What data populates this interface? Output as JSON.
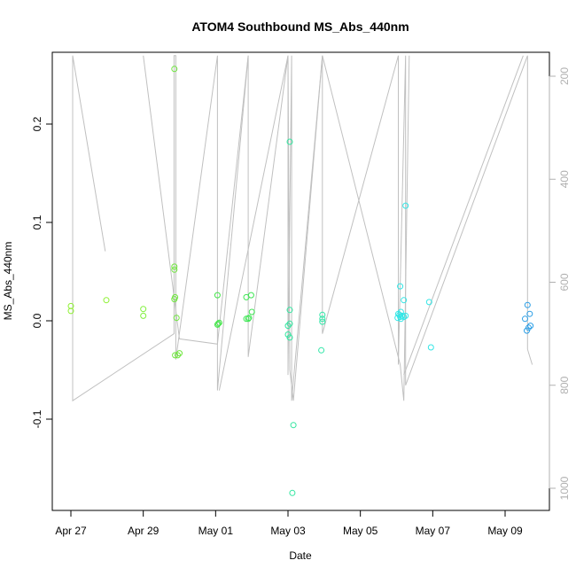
{
  "chart_data": {
    "type": "scatter",
    "title": "ATOM4 Southbound MS_Abs_440nm",
    "xlabel": "Date",
    "ylabel": "MS_Abs_440nm",
    "x_ticks": [
      "Apr 27",
      "Apr 29",
      "May 01",
      "May 03",
      "May 05",
      "May 07",
      "May 09"
    ],
    "x_tick_values": [
      0,
      2,
      4,
      6,
      8,
      10,
      12
    ],
    "y_ticks": [
      "-0.1",
      "0.0",
      "0.1",
      "0.2"
    ],
    "y_tick_values": [
      -0.1,
      0.0,
      0.1,
      0.2
    ],
    "ylim": [
      -0.19,
      0.27
    ],
    "y2_ticks": [
      "200",
      "400",
      "600",
      "800",
      "1000"
    ],
    "y2_tick_values": [
      200,
      400,
      600,
      800,
      1000
    ],
    "y2lim": [
      1030,
      160
    ],
    "grid": false,
    "points": [
      {
        "x": 0.0,
        "y": 0.015,
        "color": "#8ef032"
      },
      {
        "x": 0.0,
        "y": 0.01,
        "color": "#8ef032"
      },
      {
        "x": 0.98,
        "y": 0.021,
        "color": "#8ef032"
      },
      {
        "x": 2.0,
        "y": 0.012,
        "color": "#7ff03a"
      },
      {
        "x": 2.0,
        "y": 0.005,
        "color": "#7ff03a"
      },
      {
        "x": 2.86,
        "y": 0.256,
        "color": "#6ee63c"
      },
      {
        "x": 2.86,
        "y": 0.055,
        "color": "#6ee63c"
      },
      {
        "x": 2.86,
        "y": 0.052,
        "color": "#6ee63c"
      },
      {
        "x": 2.88,
        "y": 0.024,
        "color": "#6ee63c"
      },
      {
        "x": 2.86,
        "y": 0.022,
        "color": "#6ee63c"
      },
      {
        "x": 2.92,
        "y": 0.003,
        "color": "#6ee63c"
      },
      {
        "x": 2.88,
        "y": -0.035,
        "color": "#6ee63c"
      },
      {
        "x": 2.95,
        "y": -0.035,
        "color": "#6ee63c"
      },
      {
        "x": 3.0,
        "y": -0.033,
        "color": "#6ee63c"
      },
      {
        "x": 4.05,
        "y": 0.026,
        "color": "#44e64a"
      },
      {
        "x": 4.05,
        "y": -0.004,
        "color": "#44e64a"
      },
      {
        "x": 4.1,
        "y": -0.002,
        "color": "#44e64a"
      },
      {
        "x": 4.07,
        "y": -0.003,
        "color": "#44e64a"
      },
      {
        "x": 4.85,
        "y": 0.024,
        "color": "#3ee654"
      },
      {
        "x": 4.98,
        "y": 0.026,
        "color": "#3ee654"
      },
      {
        "x": 4.85,
        "y": 0.002,
        "color": "#3ee654"
      },
      {
        "x": 4.92,
        "y": 0.003,
        "color": "#3ee654"
      },
      {
        "x": 5.0,
        "y": 0.009,
        "color": "#3ee654"
      },
      {
        "x": 4.9,
        "y": 0.002,
        "color": "#3ee654"
      },
      {
        "x": 6.05,
        "y": 0.182,
        "color": "#33e6a0"
      },
      {
        "x": 6.05,
        "y": 0.011,
        "color": "#33e6a0"
      },
      {
        "x": 6.05,
        "y": -0.003,
        "color": "#33e6a0"
      },
      {
        "x": 6.0,
        "y": -0.005,
        "color": "#33e6a0"
      },
      {
        "x": 6.0,
        "y": -0.014,
        "color": "#33e6a0"
      },
      {
        "x": 6.05,
        "y": -0.017,
        "color": "#33e6a0"
      },
      {
        "x": 6.15,
        "y": -0.106,
        "color": "#33e6a0"
      },
      {
        "x": 6.12,
        "y": -0.175,
        "color": "#33e6a0"
      },
      {
        "x": 6.95,
        "y": 0.006,
        "color": "#33e6a8"
      },
      {
        "x": 6.95,
        "y": 0.002,
        "color": "#33e6a8"
      },
      {
        "x": 6.95,
        "y": -0.001,
        "color": "#33e6a8"
      },
      {
        "x": 6.92,
        "y": -0.03,
        "color": "#33e6a8"
      },
      {
        "x": 9.1,
        "y": 0.035,
        "color": "#33e6e6"
      },
      {
        "x": 9.25,
        "y": 0.117,
        "color": "#33e6e6"
      },
      {
        "x": 9.2,
        "y": 0.021,
        "color": "#33e6e6"
      },
      {
        "x": 9.12,
        "y": 0.009,
        "color": "#33e6e6"
      },
      {
        "x": 9.05,
        "y": 0.007,
        "color": "#33e6e6"
      },
      {
        "x": 9.08,
        "y": 0.006,
        "color": "#33e6e6"
      },
      {
        "x": 9.15,
        "y": 0.005,
        "color": "#33e6e6"
      },
      {
        "x": 9.1,
        "y": 0.004,
        "color": "#33e6e6"
      },
      {
        "x": 9.03,
        "y": 0.003,
        "color": "#33e6e6"
      },
      {
        "x": 9.2,
        "y": 0.004,
        "color": "#33e6e6"
      },
      {
        "x": 9.25,
        "y": 0.005,
        "color": "#33e6e6"
      },
      {
        "x": 9.12,
        "y": 0.002,
        "color": "#33e6e6"
      },
      {
        "x": 9.9,
        "y": 0.019,
        "color": "#33e6e6"
      },
      {
        "x": 9.95,
        "y": -0.027,
        "color": "#33e6e6"
      },
      {
        "x": 12.62,
        "y": 0.016,
        "color": "#2a9ee6"
      },
      {
        "x": 12.68,
        "y": 0.007,
        "color": "#2a9ee6"
      },
      {
        "x": 12.55,
        "y": 0.002,
        "color": "#2a9ee6"
      },
      {
        "x": 12.7,
        "y": -0.005,
        "color": "#2a9ee6"
      },
      {
        "x": 12.65,
        "y": -0.007,
        "color": "#2a9ee6"
      },
      {
        "x": 12.6,
        "y": -0.01,
        "color": "#2a9ee6"
      }
    ],
    "line_series": [
      {
        "axis": "right",
        "color": "#c0c0c0",
        "points": [
          [
            0.05,
            160
          ],
          [
            0.05,
            830
          ],
          [
            2.85,
            700
          ],
          [
            2.85,
            160
          ],
          [
            2.9,
            160
          ],
          [
            2.9,
            750
          ],
          [
            4.05,
            160
          ],
          [
            4.05,
            810
          ],
          [
            4.9,
            160
          ],
          [
            4.9,
            745
          ],
          [
            6.0,
            160
          ],
          [
            6.0,
            780
          ],
          [
            6.1,
            160
          ],
          [
            6.1,
            830
          ],
          [
            6.95,
            160
          ],
          [
            6.95,
            700
          ],
          [
            9.05,
            160
          ],
          [
            9.05,
            760
          ],
          [
            9.25,
            160
          ],
          [
            9.25,
            800
          ],
          [
            12.62,
            160
          ],
          [
            12.62,
            730
          ],
          [
            12.75,
            760
          ]
        ]
      },
      {
        "axis": "right",
        "color": "#c0c0c0",
        "points": [
          [
            0.05,
            160
          ],
          [
            0.95,
            540
          ]
        ]
      },
      {
        "axis": "right",
        "color": "#c0c0c0",
        "points": [
          [
            2.0,
            160
          ],
          [
            3.0,
            710
          ],
          [
            4.05,
            720
          ],
          [
            4.9,
            160
          ]
        ]
      },
      {
        "axis": "right",
        "color": "#c0c0c0",
        "points": [
          [
            4.1,
            810
          ],
          [
            6.0,
            160
          ],
          [
            6.05,
            770
          ],
          [
            6.15,
            830
          ],
          [
            6.95,
            160
          ],
          [
            9.1,
            760
          ],
          [
            9.2,
            830
          ],
          [
            9.35,
            160
          ]
        ]
      },
      {
        "axis": "right",
        "color": "#c0c0c0",
        "points": [
          [
            9.2,
            780
          ],
          [
            12.5,
            160
          ]
        ]
      }
    ]
  }
}
